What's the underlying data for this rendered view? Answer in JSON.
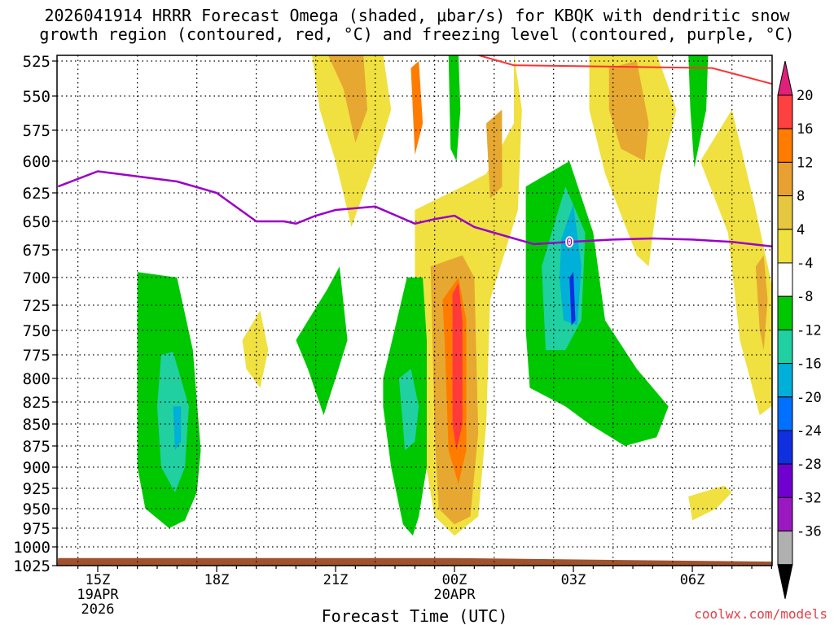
{
  "title_line1": "2026041914 HRRR Forecast Omega (shaded, μbar/s) for KBQK with dendritic snow",
  "title_line2": "growth region (contoured, red, °C) and freezing level (contoured, purple, °C)",
  "credit": "coolwx.com/models",
  "chart_data": {
    "type": "time-height cross section",
    "xlabel": "Forecast Time (UTC)",
    "xlim": [
      -1,
      17.5
    ],
    "ylim": [
      1025,
      520
    ],
    "x_ticks": [
      {
        "x": 0,
        "lines": [
          "15Z",
          "19APR",
          "2026"
        ]
      },
      {
        "x": 3,
        "lines": [
          "18Z"
        ]
      },
      {
        "x": 6,
        "lines": [
          "21Z"
        ]
      },
      {
        "x": 9,
        "lines": [
          "00Z",
          "20APR"
        ]
      },
      {
        "x": 12,
        "lines": [
          "03Z"
        ]
      },
      {
        "x": 15,
        "lines": [
          "06Z"
        ]
      }
    ],
    "y_ticks": [
      525,
      550,
      575,
      600,
      625,
      650,
      675,
      700,
      725,
      750,
      775,
      800,
      825,
      850,
      875,
      900,
      925,
      950,
      975,
      1000,
      1025
    ],
    "colorbar": {
      "labels": [
        20,
        16,
        12,
        8,
        4,
        -4,
        -8,
        -12,
        -16,
        -20,
        -24,
        -28,
        -32,
        -36
      ],
      "colors": [
        "#ff4040",
        "#ff7c00",
        "#e8a030",
        "#e6c740",
        "#f0e040",
        "#ffffff",
        "#00c800",
        "#20d0a0",
        "#00b0d8",
        "#0070ff",
        "#1030e0",
        "#7000d0",
        "#9a18c0",
        "#b0b0b0"
      ],
      "top_color": "#e0207a",
      "bottom_color": "#000000"
    },
    "omega_polygons": [
      {
        "value": 4,
        "color": "#f0e040",
        "points": [
          [
            5.4,
            520
          ],
          [
            7.2,
            520
          ],
          [
            7.4,
            560
          ],
          [
            7.0,
            600
          ],
          [
            6.4,
            655
          ],
          [
            6.0,
            600
          ],
          [
            5.6,
            560
          ]
        ]
      },
      {
        "value": 8,
        "color": "#e6a830",
        "points": [
          [
            5.8,
            520
          ],
          [
            6.7,
            520
          ],
          [
            6.8,
            560
          ],
          [
            6.5,
            585
          ],
          [
            6.2,
            545
          ]
        ]
      },
      {
        "value": 4,
        "color": "#f0e040",
        "points": [
          [
            8.0,
            640
          ],
          [
            9.2,
            620
          ],
          [
            9.8,
            610
          ],
          [
            10.5,
            570
          ],
          [
            10.5,
            520
          ],
          [
            10.7,
            560
          ],
          [
            10.6,
            640
          ],
          [
            9.9,
            720
          ],
          [
            9.8,
            850
          ],
          [
            9.6,
            960
          ],
          [
            9.0,
            985
          ],
          [
            8.5,
            960
          ],
          [
            8.1,
            850
          ],
          [
            8.0,
            720
          ]
        ]
      },
      {
        "value": 8,
        "color": "#e6a830",
        "points": [
          [
            8.4,
            690
          ],
          [
            9.2,
            680
          ],
          [
            9.5,
            700
          ],
          [
            9.6,
            860
          ],
          [
            9.4,
            960
          ],
          [
            9.0,
            970
          ],
          [
            8.6,
            950
          ],
          [
            8.5,
            860
          ]
        ]
      },
      {
        "value": 12,
        "color": "#ff7c00",
        "points": [
          [
            8.7,
            720
          ],
          [
            9.1,
            700
          ],
          [
            9.3,
            740
          ],
          [
            9.3,
            880
          ],
          [
            9.1,
            920
          ],
          [
            8.85,
            880
          ],
          [
            8.75,
            760
          ]
        ]
      },
      {
        "value": 16,
        "color": "#ff3a3a",
        "points": [
          [
            8.95,
            715
          ],
          [
            9.1,
            705
          ],
          [
            9.2,
            740
          ],
          [
            9.2,
            850
          ],
          [
            9.05,
            880
          ],
          [
            8.95,
            850
          ]
        ]
      },
      {
        "value": 8,
        "color": "#e6a830",
        "points": [
          [
            9.8,
            570
          ],
          [
            10.2,
            560
          ],
          [
            10.2,
            620
          ],
          [
            9.9,
            630
          ]
        ]
      },
      {
        "value": 12,
        "color": "#ff7c00",
        "points": [
          [
            7.9,
            530
          ],
          [
            8.1,
            525
          ],
          [
            8.2,
            570
          ],
          [
            8.0,
            595
          ]
        ]
      },
      {
        "value": 4,
        "color": "#f0e040",
        "points": [
          [
            12.4,
            520
          ],
          [
            14.1,
            520
          ],
          [
            14.6,
            560
          ],
          [
            14.2,
            610
          ],
          [
            13.9,
            690
          ],
          [
            13.6,
            680
          ],
          [
            12.8,
            610
          ],
          [
            12.4,
            560
          ]
        ]
      },
      {
        "value": 8,
        "color": "#e6a830",
        "points": [
          [
            12.9,
            530
          ],
          [
            13.6,
            525
          ],
          [
            13.9,
            570
          ],
          [
            13.8,
            600
          ],
          [
            13.2,
            590
          ],
          [
            12.9,
            560
          ]
        ]
      },
      {
        "value": 4,
        "color": "#f0e040",
        "points": [
          [
            15.2,
            600
          ],
          [
            16.0,
            560
          ],
          [
            16.6,
            640
          ],
          [
            17.2,
            740
          ],
          [
            17.3,
            820
          ],
          [
            16.7,
            840
          ],
          [
            16.2,
            760
          ],
          [
            15.9,
            660
          ]
        ]
      },
      {
        "value": 8,
        "color": "#e6a830",
        "points": [
          [
            16.6,
            690
          ],
          [
            16.8,
            680
          ],
          [
            16.9,
            720
          ],
          [
            16.8,
            770
          ],
          [
            16.7,
            750
          ]
        ]
      },
      {
        "value": 4,
        "color": "#f0e040",
        "points": [
          [
            3.65,
            760
          ],
          [
            4.1,
            730
          ],
          [
            4.3,
            770
          ],
          [
            4.1,
            810
          ],
          [
            3.75,
            790
          ]
        ]
      },
      {
        "value": 4,
        "color": "#f0e040",
        "points": [
          [
            14.9,
            935
          ],
          [
            15.8,
            922
          ],
          [
            16.0,
            930
          ],
          [
            15.6,
            950
          ],
          [
            15.0,
            965
          ]
        ]
      },
      {
        "value": -4,
        "color": "#00c800",
        "points": [
          [
            1.0,
            695
          ],
          [
            2.0,
            700
          ],
          [
            2.4,
            770
          ],
          [
            2.6,
            880
          ],
          [
            2.5,
            930
          ],
          [
            2.2,
            965
          ],
          [
            1.8,
            975
          ],
          [
            1.2,
            950
          ],
          [
            1.0,
            900
          ],
          [
            1.0,
            770
          ]
        ]
      },
      {
        "value": -8,
        "color": "#20d0a0",
        "points": [
          [
            1.6,
            775
          ],
          [
            1.9,
            772
          ],
          [
            2.3,
            830
          ],
          [
            2.2,
            900
          ],
          [
            1.95,
            930
          ],
          [
            1.6,
            900
          ],
          [
            1.5,
            830
          ]
        ]
      },
      {
        "value": -12,
        "color": "#00b0d8",
        "points": [
          [
            1.9,
            830
          ],
          [
            2.1,
            830
          ],
          [
            2.1,
            870
          ],
          [
            1.95,
            880
          ]
        ]
      },
      {
        "value": -4,
        "color": "#00c800",
        "points": [
          [
            5.0,
            760
          ],
          [
            5.8,
            710
          ],
          [
            6.1,
            690
          ],
          [
            6.3,
            760
          ],
          [
            6.0,
            800
          ],
          [
            5.7,
            840
          ],
          [
            5.3,
            790
          ]
        ]
      },
      {
        "value": -4,
        "color": "#00c800",
        "points": [
          [
            7.2,
            800
          ],
          [
            7.8,
            700
          ],
          [
            8.2,
            700
          ],
          [
            8.3,
            760
          ],
          [
            8.3,
            900
          ],
          [
            8.1,
            960
          ],
          [
            7.95,
            985
          ],
          [
            7.7,
            970
          ],
          [
            7.4,
            900
          ],
          [
            7.2,
            830
          ]
        ]
      },
      {
        "value": -8,
        "color": "#20d0a0",
        "points": [
          [
            7.6,
            800
          ],
          [
            7.9,
            790
          ],
          [
            8.1,
            830
          ],
          [
            8.0,
            870
          ],
          [
            7.75,
            880
          ]
        ]
      },
      {
        "value": -4,
        "color": "#00c800",
        "points": [
          [
            8.85,
            520
          ],
          [
            9.1,
            520
          ],
          [
            9.15,
            560
          ],
          [
            9.05,
            600
          ],
          [
            8.9,
            590
          ]
        ]
      },
      {
        "value": -4,
        "color": "#00c800",
        "points": [
          [
            10.8,
            620
          ],
          [
            11.9,
            600
          ],
          [
            12.5,
            660
          ],
          [
            12.8,
            740
          ],
          [
            13.6,
            790
          ],
          [
            14.4,
            830
          ],
          [
            14.1,
            865
          ],
          [
            13.3,
            875
          ],
          [
            12.4,
            850
          ],
          [
            11.8,
            830
          ],
          [
            10.9,
            810
          ],
          [
            10.8,
            750
          ]
        ]
      },
      {
        "value": -8,
        "color": "#20d0a0",
        "points": [
          [
            11.2,
            690
          ],
          [
            11.8,
            620
          ],
          [
            12.3,
            660
          ],
          [
            12.2,
            740
          ],
          [
            11.8,
            770
          ],
          [
            11.3,
            770
          ]
        ]
      },
      {
        "value": -12,
        "color": "#00b0d8",
        "points": [
          [
            11.7,
            665
          ],
          [
            12.0,
            635
          ],
          [
            12.2,
            690
          ],
          [
            12.1,
            745
          ],
          [
            11.75,
            740
          ],
          [
            11.65,
            700
          ]
        ]
      },
      {
        "value": -20,
        "color": "#1030e0",
        "points": [
          [
            11.9,
            700
          ],
          [
            12.0,
            695
          ],
          [
            12.05,
            740
          ],
          [
            11.95,
            745
          ]
        ]
      },
      {
        "value": -4,
        "color": "#00c800",
        "points": [
          [
            14.9,
            520
          ],
          [
            15.4,
            520
          ],
          [
            15.35,
            560
          ],
          [
            15.05,
            605
          ],
          [
            14.95,
            560
          ]
        ]
      },
      {
        "value": -4,
        "color": "#00c800",
        "points": [
          [
            17.45,
            520
          ],
          [
            17.5,
            520
          ],
          [
            17.5,
            540
          ],
          [
            17.45,
            530
          ]
        ]
      }
    ],
    "freezing_level": {
      "label": "0",
      "label_x": 11.9,
      "x": [
        -1.0,
        0.0,
        1.0,
        2.0,
        3.0,
        4.0,
        4.7,
        5.0,
        5.5,
        6.0,
        7.0,
        8.0,
        8.5,
        9.0,
        9.5,
        10.0,
        11.0,
        11.9,
        13.0,
        14.0,
        15.0,
        16.0,
        17.0,
        17.5
      ],
      "p": [
        620,
        608,
        612,
        616,
        625,
        650,
        650,
        652,
        645,
        640,
        637,
        652,
        648,
        645,
        655,
        660,
        670,
        668,
        666,
        665,
        666,
        668,
        672,
        672
      ]
    },
    "dgz_line": {
      "x": [
        9.5,
        10.5,
        15.5,
        17.5
      ],
      "p": [
        520,
        528,
        530,
        545
      ]
    },
    "ground": {
      "x": [
        -1.0,
        9.0,
        17.5
      ],
      "p": [
        1015,
        1015,
        1020
      ]
    }
  }
}
